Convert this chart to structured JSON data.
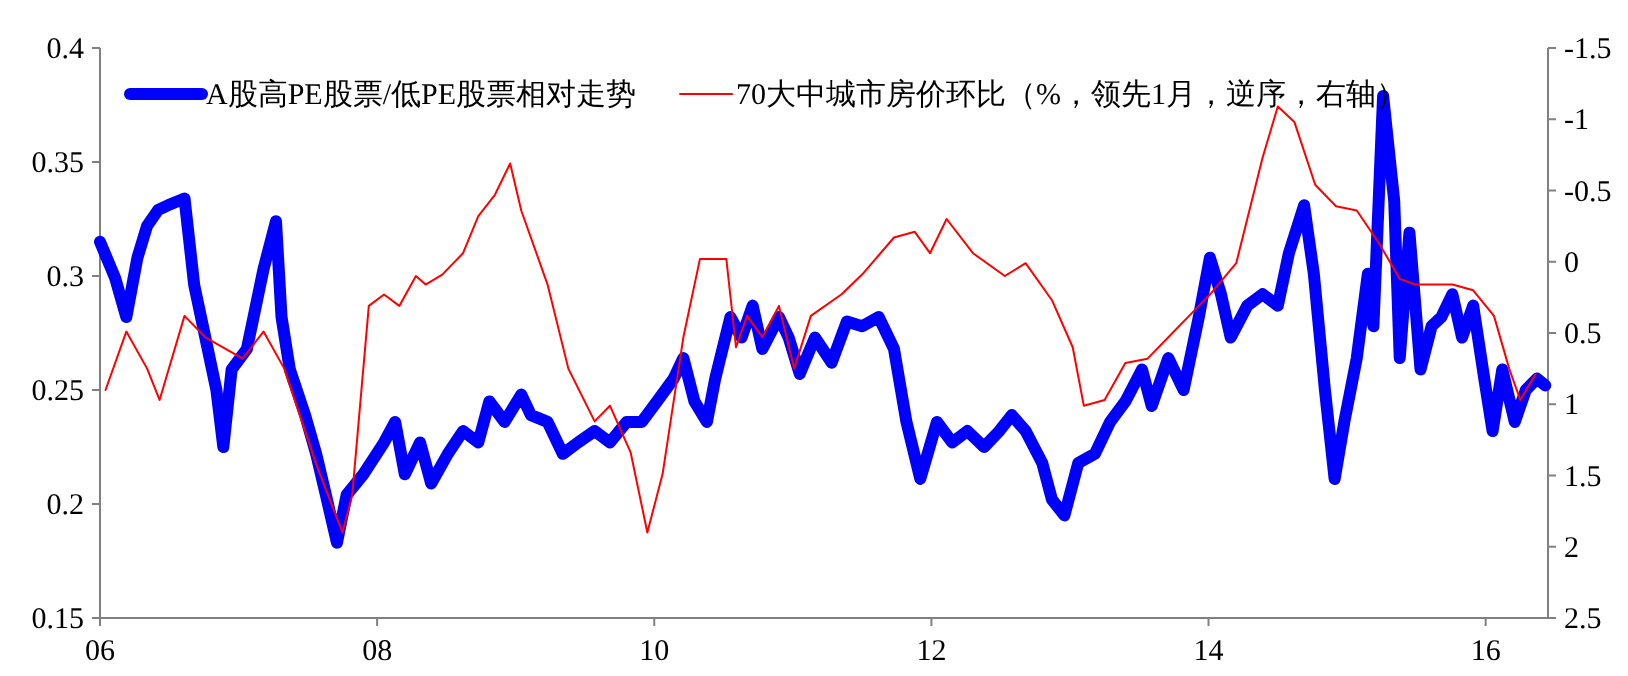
{
  "chart_data": {
    "type": "line",
    "legend": "top",
    "grid": false,
    "marker": "none",
    "line_style": "solid",
    "xlim": [
      2006,
      2016.45
    ],
    "xticks": [
      {
        "value": 2006,
        "label": "06"
      },
      {
        "value": 2008,
        "label": "08"
      },
      {
        "value": 2010,
        "label": "10"
      },
      {
        "value": 2012,
        "label": "12"
      },
      {
        "value": 2014,
        "label": "14"
      },
      {
        "value": 2016,
        "label": "16"
      }
    ],
    "ylim": [
      0.15,
      0.4
    ],
    "yticks": [
      0.15,
      0.2,
      0.25,
      0.3,
      0.35,
      0.4
    ],
    "y2lim": [
      2.5,
      -1.5
    ],
    "y2ticks": [
      2.5,
      2,
      1.5,
      1,
      0.5,
      0,
      -0.5,
      -1,
      -1.5
    ],
    "series": [
      {
        "name": "A股高PE股票/低PE股票相对走势",
        "color": "#0000ff",
        "x": [
          2006.0,
          2006.11,
          2006.19,
          2006.27,
          2006.34,
          2006.42,
          2006.49,
          2006.61,
          2006.68,
          2006.76,
          2006.84,
          2006.89,
          2006.95,
          2007.06,
          2007.18,
          2007.27,
          2007.31,
          2007.37,
          2007.48,
          2007.56,
          2007.63,
          2007.71,
          2007.78,
          2007.9,
          2008.05,
          2008.13,
          2008.2,
          2008.31,
          2008.39,
          2008.51,
          2008.62,
          2008.73,
          2008.81,
          2008.92,
          2009.04,
          2009.11,
          2009.23,
          2009.34,
          2009.45,
          2009.57,
          2009.68,
          2009.8,
          2009.91,
          2010.02,
          2010.14,
          2010.21,
          2010.29,
          2010.38,
          2010.44,
          2010.55,
          2010.63,
          2010.71,
          2010.78,
          2010.9,
          2010.97,
          2011.05,
          2011.16,
          2011.28,
          2011.39,
          2011.5,
          2011.62,
          2011.73,
          2011.82,
          2011.92,
          2012.04,
          2012.15,
          2012.26,
          2012.38,
          2012.49,
          2012.58,
          2012.68,
          2012.8,
          2012.87,
          2012.96,
          2013.06,
          2013.18,
          2013.29,
          2013.4,
          2013.52,
          2013.59,
          2013.71,
          2013.82,
          2013.93,
          2014.01,
          2014.09,
          2014.16,
          2014.28,
          2014.39,
          2014.5,
          2014.58,
          2014.69,
          2014.76,
          2014.84,
          2014.91,
          2014.98,
          2015.07,
          2015.15,
          2015.19,
          2015.26,
          2015.34,
          2015.38,
          2015.45,
          2015.53,
          2015.61,
          2015.68,
          2015.76,
          2015.83,
          2015.91,
          2015.99,
          2016.05,
          2016.12,
          2016.21,
          2016.29,
          2016.37,
          2016.43
        ],
        "values": [
          0.315,
          0.299,
          0.282,
          0.308,
          0.322,
          0.329,
          0.331,
          0.334,
          0.296,
          0.273,
          0.25,
          0.225,
          0.259,
          0.268,
          0.303,
          0.324,
          0.282,
          0.259,
          0.239,
          0.222,
          0.204,
          0.183,
          0.204,
          0.213,
          0.227,
          0.236,
          0.213,
          0.227,
          0.209,
          0.222,
          0.232,
          0.227,
          0.245,
          0.236,
          0.248,
          0.239,
          0.236,
          0.222,
          0.227,
          0.232,
          0.227,
          0.236,
          0.236,
          0.245,
          0.255,
          0.264,
          0.245,
          0.236,
          0.255,
          0.282,
          0.273,
          0.287,
          0.268,
          0.282,
          0.273,
          0.257,
          0.273,
          0.262,
          0.28,
          0.278,
          0.282,
          0.268,
          0.236,
          0.211,
          0.236,
          0.227,
          0.232,
          0.225,
          0.232,
          0.239,
          0.232,
          0.218,
          0.202,
          0.195,
          0.218,
          0.222,
          0.236,
          0.245,
          0.259,
          0.243,
          0.264,
          0.25,
          0.282,
          0.308,
          0.292,
          0.273,
          0.287,
          0.292,
          0.287,
          0.31,
          0.331,
          0.301,
          0.25,
          0.211,
          0.236,
          0.264,
          0.301,
          0.278,
          0.379,
          0.333,
          0.264,
          0.319,
          0.259,
          0.278,
          0.282,
          0.292,
          0.273,
          0.287,
          0.255,
          0.232,
          0.259,
          0.236,
          0.25,
          0.255,
          0.252
        ]
      },
      {
        "name": "70大中城市房价环比（%，领先1月，逆序，右轴）",
        "color": "#ff0000",
        "axis": "y2",
        "x": [
          2006.04,
          2006.19,
          2006.34,
          2006.43,
          2006.61,
          2006.76,
          2007.03,
          2007.18,
          2007.33,
          2007.56,
          2007.75,
          2007.82,
          2007.94,
          2008.05,
          2008.16,
          2008.28,
          2008.35,
          2008.47,
          2008.62,
          2008.73,
          2008.85,
          2008.96,
          2009.04,
          2009.23,
          2009.38,
          2009.57,
          2009.68,
          2009.83,
          2009.95,
          2010.06,
          2010.21,
          2010.33,
          2010.52,
          2010.59,
          2010.67,
          2010.78,
          2010.9,
          2011.01,
          2011.13,
          2011.35,
          2011.5,
          2011.73,
          2011.88,
          2011.99,
          2012.11,
          2012.3,
          2012.53,
          2012.68,
          2012.87,
          2013.02,
          2013.1,
          2013.25,
          2013.4,
          2013.56,
          2013.71,
          2013.86,
          2014.01,
          2014.2,
          2014.39,
          2014.5,
          2014.62,
          2014.77,
          2014.92,
          2015.07,
          2015.23,
          2015.38,
          2015.49,
          2015.76,
          2015.91,
          2016.06,
          2016.17,
          2016.25,
          2016.36
        ],
        "values": [
          0.9,
          0.49,
          0.75,
          0.97,
          0.38,
          0.53,
          0.68,
          0.49,
          0.75,
          1.42,
          1.9,
          1.64,
          0.31,
          0.23,
          0.31,
          0.1,
          0.16,
          0.09,
          -0.06,
          -0.32,
          -0.47,
          -0.69,
          -0.36,
          0.16,
          0.75,
          1.12,
          1.01,
          1.34,
          1.9,
          1.49,
          0.53,
          -0.02,
          -0.02,
          0.6,
          0.38,
          0.53,
          0.31,
          0.75,
          0.38,
          0.23,
          0.09,
          -0.17,
          -0.21,
          -0.06,
          -0.3,
          -0.06,
          0.1,
          0.01,
          0.27,
          0.6,
          1.01,
          0.97,
          0.71,
          0.68,
          0.53,
          0.38,
          0.23,
          0.01,
          -0.73,
          -1.09,
          -0.98,
          -0.54,
          -0.39,
          -0.36,
          -0.13,
          0.12,
          0.16,
          0.16,
          0.2,
          0.38,
          0.75,
          0.97,
          0.79
        ]
      }
    ]
  }
}
